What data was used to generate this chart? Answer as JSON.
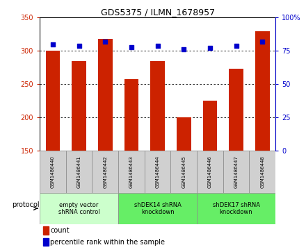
{
  "title": "GDS5375 / ILMN_1678957",
  "samples": [
    "GSM1486440",
    "GSM1486441",
    "GSM1486442",
    "GSM1486443",
    "GSM1486444",
    "GSM1486445",
    "GSM1486446",
    "GSM1486447",
    "GSM1486448"
  ],
  "counts": [
    300,
    285,
    318,
    258,
    285,
    200,
    225,
    273,
    330
  ],
  "percentiles": [
    80,
    79,
    82,
    78,
    79,
    76,
    77,
    79,
    82
  ],
  "ylim_left": [
    150,
    350
  ],
  "ylim_right": [
    0,
    100
  ],
  "yticks_left": [
    150,
    200,
    250,
    300,
    350
  ],
  "yticks_right": [
    0,
    25,
    50,
    75,
    100
  ],
  "bar_color": "#cc2200",
  "dot_color": "#0000cc",
  "bar_width": 0.55,
  "grid_yticks": [
    200,
    250,
    300
  ],
  "protocol_groups": [
    {
      "label": "empty vector\nshRNA control",
      "start": 0,
      "end": 3,
      "color": "#ccffcc"
    },
    {
      "label": "shDEK14 shRNA\nknockdown",
      "start": 3,
      "end": 6,
      "color": "#66ee66"
    },
    {
      "label": "shDEK17 shRNA\nknockdown",
      "start": 6,
      "end": 9,
      "color": "#66ee66"
    }
  ],
  "legend_count_label": "count",
  "legend_pct_label": "percentile rank within the sample",
  "protocol_label": "protocol",
  "background_color": "#ffffff",
  "sample_box_color": "#d0d0d0",
  "title_fontsize": 9,
  "axis_label_fontsize": 7,
  "tick_fontsize": 7,
  "sample_fontsize": 5,
  "protocol_fontsize": 6,
  "legend_fontsize": 7
}
